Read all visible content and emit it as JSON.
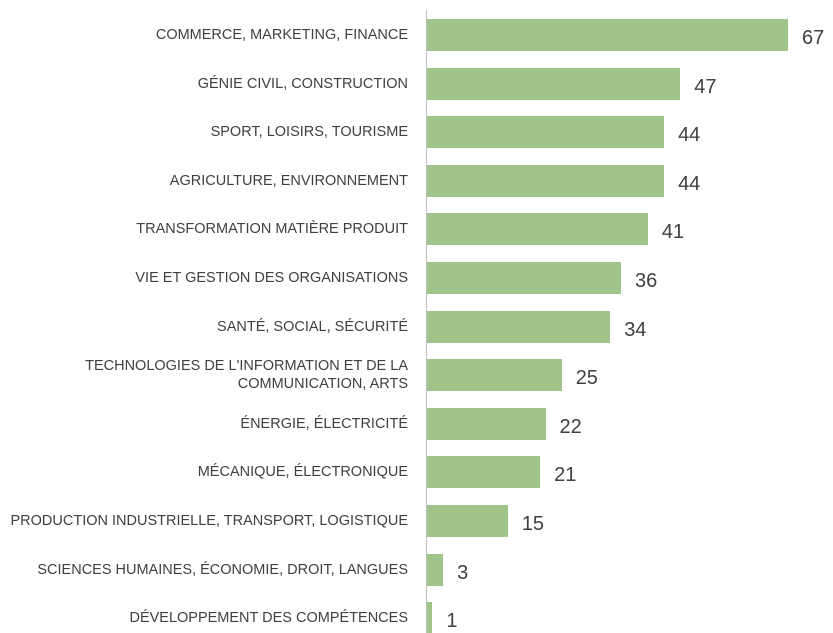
{
  "chart_data": {
    "type": "bar",
    "orientation": "horizontal",
    "color": "#9fc48c",
    "categories": [
      "COMMERCE, MARKETING, FINANCE",
      "GÉNIE CIVIL, CONSTRUCTION",
      "SPORT, LOISIRS, TOURISME",
      "AGRICULTURE, ENVIRONNEMENT",
      "TRANSFORMATION MATIÈRE PRODUIT",
      "VIE ET GESTION DES ORGANISATIONS",
      "SANTÉ, SOCIAL, SÉCURITÉ",
      "TECHNOLOGIES DE L'INFORMATION ET DE LA COMMUNICATION, ARTS",
      "ÉNERGIE, ÉLECTRICITÉ",
      "MÉCANIQUE, ÉLECTRONIQUE",
      "PRODUCTION INDUSTRIELLE, TRANSPORT, LOGISTIQUE",
      "SCIENCES HUMAINES, ÉCONOMIE, DROIT, LANGUES",
      "DÉVELOPPEMENT DES COMPÉTENCES"
    ],
    "values": [
      67,
      47,
      44,
      44,
      41,
      36,
      34,
      25,
      22,
      21,
      15,
      3,
      1
    ]
  }
}
